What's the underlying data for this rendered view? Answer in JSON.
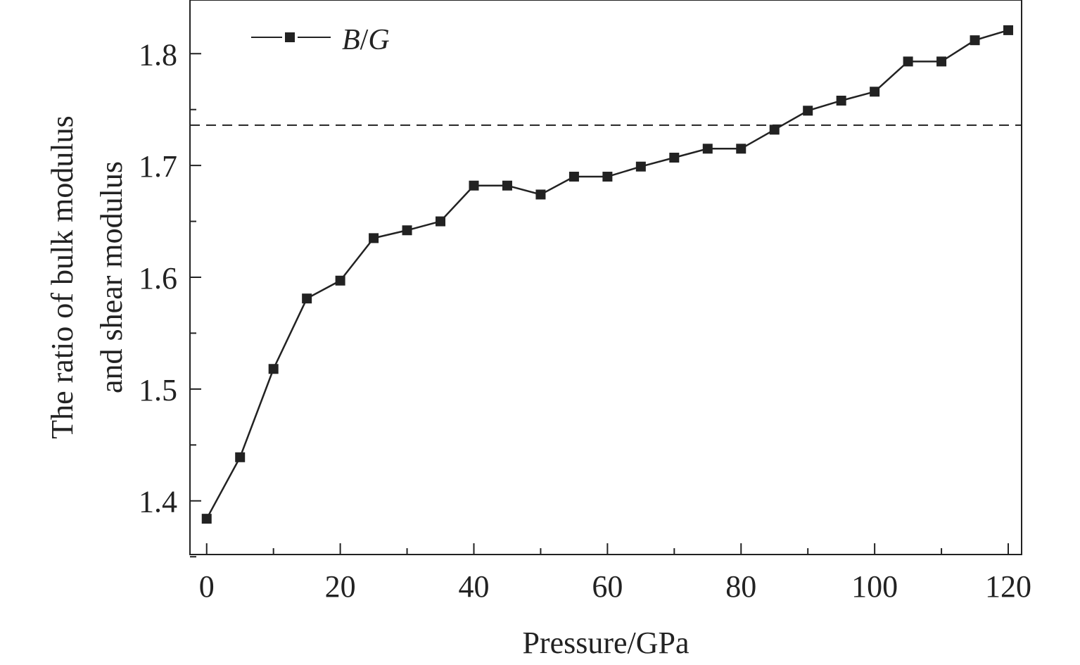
{
  "chart_data": {
    "type": "line",
    "xlabel": "Pressure/GPa",
    "ylabel_lines": [
      "The ratio of bulk modulus",
      "and shear modulus"
    ],
    "xlim": [
      -2.5,
      122
    ],
    "ylim": [
      1.352,
      1.848
    ],
    "xticks": [
      0,
      20,
      40,
      60,
      80,
      100,
      120
    ],
    "xtick_labels": [
      "0",
      "20",
      "40",
      "60",
      "80",
      "100",
      "120"
    ],
    "xminor_ticks": [
      10,
      30,
      50,
      70,
      90,
      110
    ],
    "yticks": [
      1.4,
      1.5,
      1.6,
      1.7,
      1.8
    ],
    "ytick_labels": [
      "1.4",
      "1.5",
      "1.6",
      "1.7",
      "1.8"
    ],
    "yminor_ticks": [
      1.35,
      1.45,
      1.55,
      1.65,
      1.75
    ],
    "legend_position": "top-left",
    "series": [
      {
        "name": "B/G",
        "name_parts": [
          "B",
          "/",
          "G"
        ],
        "marker": "square",
        "color": "#222222",
        "x": [
          0,
          5,
          10,
          15,
          20,
          25,
          30,
          35,
          40,
          45,
          50,
          55,
          60,
          65,
          70,
          75,
          80,
          85,
          90,
          95,
          100,
          105,
          110,
          115,
          120
        ],
        "y": [
          1.384,
          1.439,
          1.518,
          1.581,
          1.597,
          1.635,
          1.642,
          1.65,
          1.682,
          1.682,
          1.674,
          1.69,
          1.69,
          1.699,
          1.707,
          1.715,
          1.715,
          1.732,
          1.749,
          1.758,
          1.766,
          1.793,
          1.793,
          1.812,
          1.821
        ]
      }
    ],
    "reference_line": {
      "y": 1.736,
      "style": "dashed",
      "color": "#222222"
    }
  }
}
